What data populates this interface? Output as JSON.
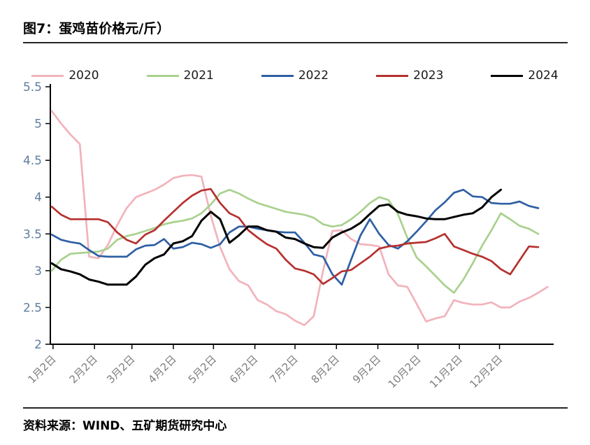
{
  "header": {
    "title": "图7：蛋鸡苗价格元/斤）"
  },
  "footer": {
    "source": "资料来源：WIND、五矿期货研究中心"
  },
  "chart_data": {
    "type": "line",
    "title": "蛋鸡苗价格元/斤",
    "legend_position": "top",
    "grid": false,
    "y_axis": {
      "min": 2,
      "max": 5.5,
      "step": 0.5,
      "tick_labels": [
        "2",
        "2.5",
        "3",
        "3.5",
        "4",
        "4.5",
        "5",
        "5.5"
      ],
      "label_color": "#5f7c9e"
    },
    "x_axis": {
      "tick_labels": [
        "1月2日",
        "2月2日",
        "3月2日",
        "4月2日",
        "5月2日",
        "6月2日",
        "7月2日",
        "8月2日",
        "9月2日",
        "10月2日",
        "11月2日",
        "12月2日"
      ],
      "tick_days": [
        2,
        33,
        61,
        92,
        122,
        153,
        183,
        214,
        245,
        275,
        306,
        336
      ],
      "days_per_point": 7,
      "label_color": "#7f7f7f"
    },
    "series": [
      {
        "name": "2020",
        "color": "#F2B3BC",
        "values": [
          5.17,
          5.0,
          4.85,
          4.72,
          3.19,
          3.17,
          3.35,
          3.62,
          3.85,
          4.0,
          4.05,
          4.1,
          4.17,
          4.26,
          4.29,
          4.3,
          4.28,
          3.75,
          3.32,
          3.02,
          2.86,
          2.8,
          2.6,
          2.54,
          2.45,
          2.41,
          2.32,
          2.26,
          2.38,
          3.0,
          3.54,
          3.55,
          3.43,
          3.36,
          3.35,
          3.33,
          2.95,
          2.8,
          2.78,
          2.55,
          2.31,
          2.35,
          2.38,
          2.6,
          2.56,
          2.54,
          2.54,
          2.57,
          2.5,
          2.5,
          2.58,
          2.63,
          2.7,
          2.78
        ]
      },
      {
        "name": "2021",
        "color": "#A9D18E",
        "values": [
          3.0,
          3.15,
          3.23,
          3.24,
          3.25,
          3.26,
          3.3,
          3.42,
          3.47,
          3.5,
          3.54,
          3.58,
          3.63,
          3.66,
          3.68,
          3.71,
          3.78,
          3.9,
          4.05,
          4.1,
          4.05,
          3.98,
          3.92,
          3.88,
          3.84,
          3.8,
          3.78,
          3.76,
          3.72,
          3.63,
          3.6,
          3.62,
          3.7,
          3.8,
          3.92,
          4.0,
          3.96,
          3.77,
          3.45,
          3.18,
          3.06,
          2.93,
          2.8,
          2.7,
          2.88,
          3.1,
          3.34,
          3.55,
          3.78,
          3.7,
          3.61,
          3.57,
          3.5
        ]
      },
      {
        "name": "2022",
        "color": "#2E5FA3",
        "values": [
          3.49,
          3.42,
          3.39,
          3.37,
          3.28,
          3.2,
          3.19,
          3.19,
          3.19,
          3.29,
          3.34,
          3.35,
          3.43,
          3.3,
          3.32,
          3.38,
          3.36,
          3.31,
          3.36,
          3.52,
          3.6,
          3.6,
          3.57,
          3.55,
          3.53,
          3.52,
          3.52,
          3.38,
          3.22,
          3.19,
          2.95,
          2.81,
          3.15,
          3.48,
          3.7,
          3.5,
          3.35,
          3.3,
          3.4,
          3.53,
          3.67,
          3.82,
          3.93,
          4.06,
          4.1,
          4.01,
          4.0,
          3.92,
          3.91,
          3.91,
          3.94,
          3.88,
          3.85
        ]
      },
      {
        "name": "2023",
        "color": "#B5312F",
        "values": [
          3.87,
          3.76,
          3.7,
          3.7,
          3.7,
          3.7,
          3.66,
          3.52,
          3.42,
          3.37,
          3.49,
          3.55,
          3.68,
          3.8,
          3.92,
          4.02,
          4.09,
          4.11,
          3.92,
          3.78,
          3.72,
          3.55,
          3.45,
          3.36,
          3.3,
          3.15,
          3.03,
          3.0,
          2.95,
          2.82,
          2.9,
          2.99,
          3.01,
          3.1,
          3.19,
          3.3,
          3.33,
          3.34,
          3.37,
          3.38,
          3.39,
          3.44,
          3.5,
          3.33,
          3.28,
          3.23,
          3.19,
          3.13,
          3.02,
          2.95,
          3.14,
          3.33,
          3.32
        ]
      },
      {
        "name": "2024",
        "color": "#000000",
        "values": [
          3.1,
          3.02,
          2.99,
          2.95,
          2.88,
          2.85,
          2.81,
          2.81,
          2.81,
          2.92,
          3.08,
          3.17,
          3.22,
          3.37,
          3.4,
          3.47,
          3.68,
          3.8,
          3.7,
          3.38,
          3.48,
          3.6,
          3.6,
          3.55,
          3.53,
          3.45,
          3.43,
          3.37,
          3.32,
          3.31,
          3.45,
          3.52,
          3.57,
          3.65,
          3.77,
          3.88,
          3.9,
          3.8,
          3.76,
          3.74,
          3.71,
          3.7,
          3.7,
          3.73,
          3.76,
          3.78,
          3.86,
          4.0,
          4.1
        ]
      }
    ]
  }
}
